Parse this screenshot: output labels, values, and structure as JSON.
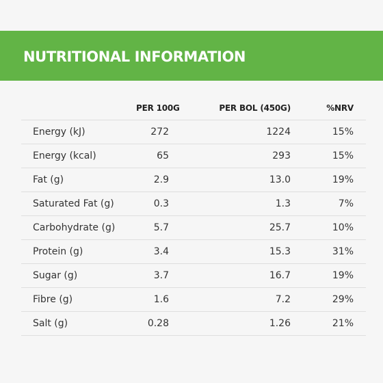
{
  "banner": {
    "title": "NUTRITIONAL INFORMATION",
    "accent_color": "#62b446"
  },
  "table": {
    "columns": [
      "",
      "PER 100G",
      "PER BOL (450G)",
      "%NRV"
    ],
    "rows": [
      {
        "name": "Energy (kJ)",
        "per_100g": "272",
        "per_bol": "1224",
        "nrv": "15%"
      },
      {
        "name": "Energy (kcal)",
        "per_100g": "65",
        "per_bol": "293",
        "nrv": "15%"
      },
      {
        "name": "Fat (g)",
        "per_100g": "2.9",
        "per_bol": "13.0",
        "nrv": "19%"
      },
      {
        "name": "Saturated Fat (g)",
        "per_100g": "0.3",
        "per_bol": "1.3",
        "nrv": "7%"
      },
      {
        "name": "Carbohydrate (g)",
        "per_100g": "5.7",
        "per_bol": "25.7",
        "nrv": "10%"
      },
      {
        "name": "Protein (g)",
        "per_100g": "3.4",
        "per_bol": "15.3",
        "nrv": "31%"
      },
      {
        "name": "Sugar (g)",
        "per_100g": "3.7",
        "per_bol": "16.7",
        "nrv": "19%"
      },
      {
        "name": "Fibre (g)",
        "per_100g": "1.6",
        "per_bol": "7.2",
        "nrv": "29%"
      },
      {
        "name": "Salt (g)",
        "per_100g": "0.28",
        "per_bol": "1.26",
        "nrv": "21%"
      }
    ]
  }
}
